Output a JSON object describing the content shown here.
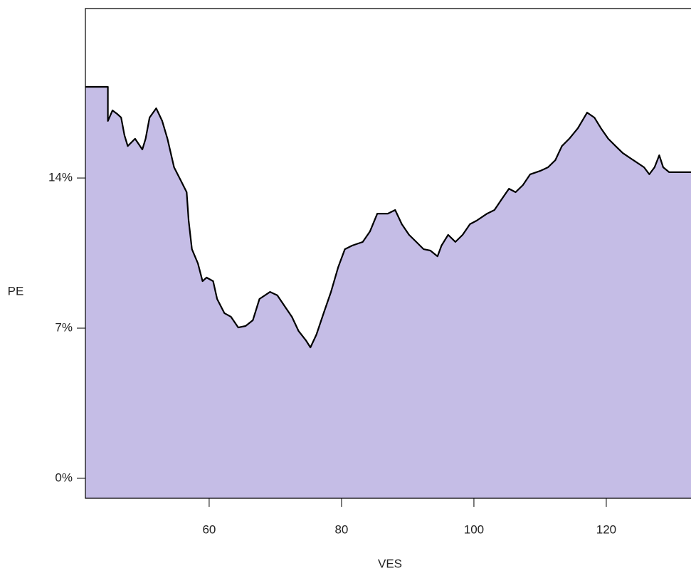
{
  "chart_data": {
    "type": "area",
    "xlabel": "VES",
    "ylabel": "PE",
    "x": [
      41.3,
      44.7,
      44.7,
      45.4,
      46.1,
      46.7,
      47.2,
      47.7,
      48.8,
      49.9,
      50.4,
      51.0,
      52.0,
      52.9,
      53.7,
      54.7,
      55.8,
      56.6,
      56.9,
      57.4,
      58.3,
      59.0,
      59.6,
      60.6,
      61.2,
      62.3,
      63.3,
      64.4,
      65.5,
      66.6,
      67.6,
      69.2,
      70.3,
      71.4,
      72.5,
      73.5,
      74.6,
      75.3,
      76.2,
      77.3,
      78.4,
      79.5,
      80.5,
      81.6,
      83.2,
      84.3,
      85.4,
      87.0,
      88.1,
      89.1,
      90.2,
      91.3,
      92.4,
      93.4,
      94.5,
      95.1,
      96.1,
      97.2,
      98.3,
      99.4,
      100.4,
      102.0,
      103.1,
      104.2,
      105.3,
      106.3,
      107.4,
      108.5,
      110.1,
      111.2,
      112.3,
      113.3,
      114.4,
      115.7,
      117.1,
      118.2,
      119.2,
      120.3,
      121.4,
      122.5,
      124.1,
      125.7,
      126.5,
      127.3,
      128.0,
      128.6,
      129.5,
      132.8
    ],
    "values": [
      18.25,
      18.25,
      16.66,
      17.15,
      16.99,
      16.82,
      15.99,
      15.49,
      15.83,
      15.33,
      15.83,
      16.82,
      17.25,
      16.66,
      15.83,
      14.5,
      13.83,
      13.34,
      12.01,
      10.68,
      10.02,
      9.19,
      9.36,
      9.19,
      8.36,
      7.7,
      7.53,
      7.03,
      7.1,
      7.37,
      8.36,
      8.69,
      8.53,
      8.03,
      7.53,
      6.87,
      6.44,
      6.1,
      6.7,
      7.7,
      8.69,
      9.85,
      10.68,
      10.85,
      11.02,
      11.51,
      12.34,
      12.34,
      12.51,
      11.85,
      11.35,
      11.02,
      10.68,
      10.62,
      10.35,
      10.85,
      11.35,
      11.02,
      11.35,
      11.85,
      12.01,
      12.34,
      12.51,
      13.01,
      13.5,
      13.34,
      13.67,
      14.17,
      14.34,
      14.5,
      14.83,
      15.49,
      15.83,
      16.32,
      17.05,
      16.82,
      16.32,
      15.83,
      15.49,
      15.16,
      14.83,
      14.5,
      14.17,
      14.5,
      15.06,
      14.5,
      14.27,
      14.27
    ],
    "color": "#c5bde6",
    "line_color": "#000000",
    "xlim": [
      41.3,
      132.8
    ],
    "ylim": [
      -0.93,
      21.9
    ],
    "xticks": [
      60,
      80,
      100,
      120
    ],
    "yticks": [
      {
        "value": 0,
        "label": "0%"
      },
      {
        "value": 7,
        "label": "7%"
      },
      {
        "value": 14,
        "label": "14%"
      }
    ]
  }
}
